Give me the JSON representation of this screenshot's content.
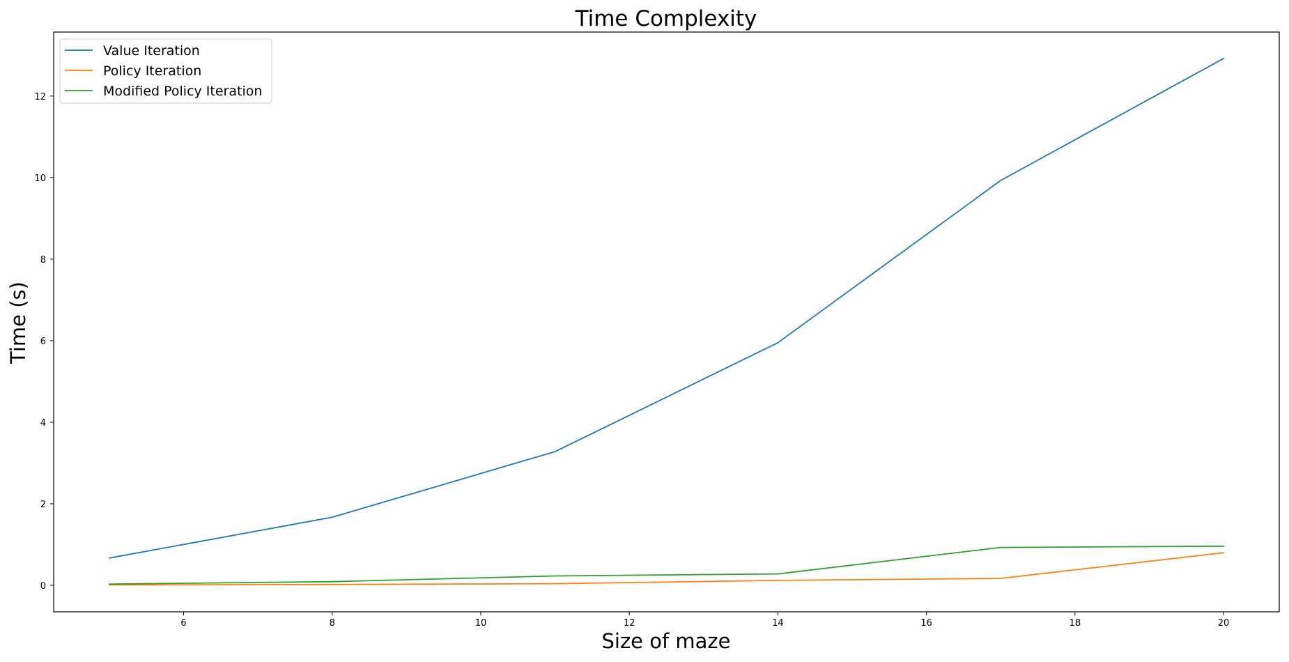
{
  "chart_data": {
    "type": "line",
    "title": "Time Complexity",
    "xlabel": "Size of maze",
    "ylabel": "Time (s)",
    "x": [
      5,
      8,
      11,
      14,
      17,
      20
    ],
    "series": [
      {
        "name": "Value Iteration",
        "color": "#1f77b4",
        "values": [
          0.67,
          1.67,
          3.28,
          5.95,
          9.93,
          12.92
        ]
      },
      {
        "name": "Policy Iteration",
        "color": "#ff7f0e",
        "values": [
          0.01,
          0.02,
          0.04,
          0.12,
          0.17,
          0.8
        ]
      },
      {
        "name": "Modified Policy Iteration",
        "color": "#2ca02c",
        "values": [
          0.03,
          0.09,
          0.23,
          0.28,
          0.93,
          0.96
        ]
      }
    ],
    "xlim": [
      4.25,
      20.75
    ],
    "ylim": [
      -0.65,
      13.57
    ],
    "xticks": [
      6,
      8,
      10,
      12,
      14,
      16,
      18,
      20
    ],
    "yticks": [
      0,
      2,
      4,
      6,
      8,
      10,
      12
    ],
    "grid": false,
    "legend": "top-left"
  }
}
